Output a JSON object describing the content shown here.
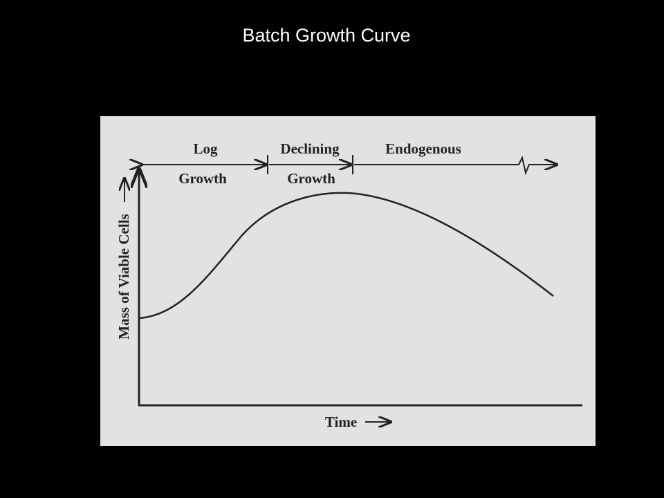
{
  "title": "Batch Growth Curve",
  "diagram": {
    "phases": [
      {
        "label": "Log",
        "sublabel": "Growth"
      },
      {
        "label": "Declining",
        "sublabel": "Growth"
      },
      {
        "label": "Endogenous"
      }
    ],
    "y_axis_label": "Mass of Viable Cells",
    "x_axis_label": "Time"
  }
}
